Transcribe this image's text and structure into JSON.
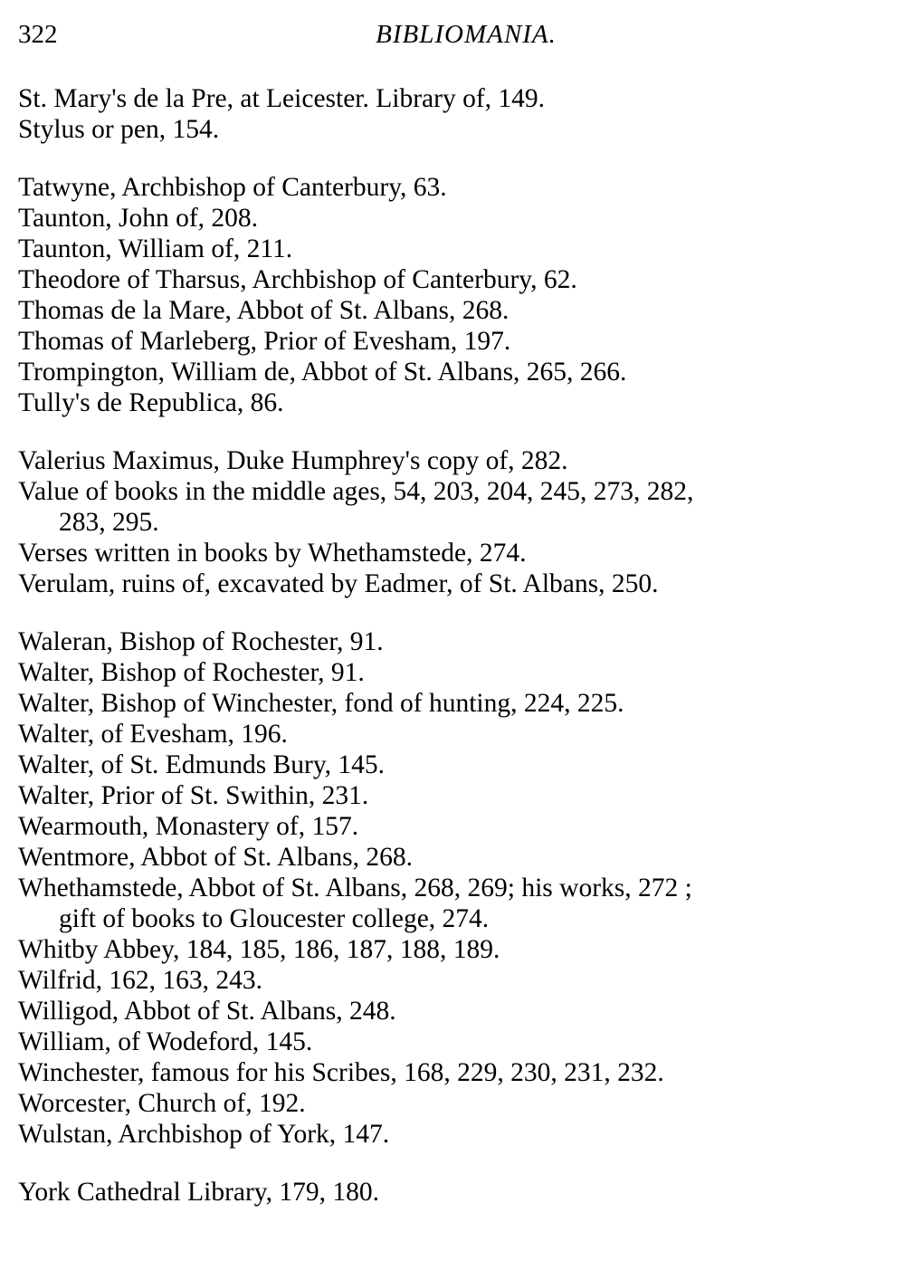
{
  "header": {
    "page_number": "322",
    "title": "BIBLIOMANIA."
  },
  "groups": [
    {
      "entries": [
        {
          "lines": [
            "St. Mary's de la Pre, at Leicester.   Library of, 149."
          ]
        },
        {
          "lines": [
            "Stylus or pen, 154."
          ]
        }
      ]
    },
    {
      "entries": [
        {
          "lines": [
            "Tatwyne, Archbishop of Canterbury, 63."
          ]
        },
        {
          "lines": [
            "Taunton, John of, 208."
          ]
        },
        {
          "lines": [
            "Taunton, William of, 211."
          ]
        },
        {
          "lines": [
            "Theodore of Tharsus, Archbishop of Canterbury, 62."
          ]
        },
        {
          "lines": [
            "Thomas de la Mare, Abbot of St. Albans, 268."
          ]
        },
        {
          "lines": [
            "Thomas of Marleberg, Prior of Evesham, 197."
          ]
        },
        {
          "lines": [
            "Trompington, William de, Abbot of St. Albans, 265, 266."
          ]
        },
        {
          "lines": [
            "Tully's de Republica, 86."
          ]
        }
      ]
    },
    {
      "entries": [
        {
          "lines": [
            "Valerius Maximus, Duke Humphrey's copy of, 282."
          ]
        },
        {
          "lines": [
            "Value of books in the middle ages, 54, 203, 204, 245, 273, 282,",
            "283, 295."
          ]
        },
        {
          "lines": [
            "Verses written in books by Whethamstede, 274."
          ]
        },
        {
          "lines": [
            "Verulam, ruins of, excavated by Eadmer, of St. Albans, 250."
          ]
        }
      ]
    },
    {
      "entries": [
        {
          "lines": [
            "Waleran, Bishop of Rochester, 91."
          ]
        },
        {
          "lines": [
            "Walter, Bishop of Rochester, 91."
          ]
        },
        {
          "lines": [
            "Walter, Bishop of Winchester, fond of hunting, 224, 225."
          ]
        },
        {
          "lines": [
            "Walter, of Evesham, 196."
          ]
        },
        {
          "lines": [
            "Walter, of St. Edmunds Bury, 145."
          ]
        },
        {
          "lines": [
            "Walter, Prior of St. Swithin, 231."
          ]
        },
        {
          "lines": [
            "Wearmouth, Monastery of, 157."
          ]
        },
        {
          "lines": [
            "Wentmore, Abbot of St. Albans, 268."
          ]
        },
        {
          "lines": [
            "Whethamstede, Abbot of St. Albans, 268, 269; his works, 272 ;",
            "gift of books to Gloucester college, 274."
          ]
        },
        {
          "lines": [
            "Whitby Abbey, 184, 185, 186, 187, 188, 189."
          ]
        },
        {
          "lines": [
            "Wilfrid, 162, 163, 243."
          ]
        },
        {
          "lines": [
            "Willigod, Abbot of St. Albans, 248."
          ]
        },
        {
          "lines": [
            "William, of Wodeford, 145."
          ]
        },
        {
          "lines": [
            "Winchester, famous for his Scribes, 168, 229, 230, 231, 232."
          ]
        },
        {
          "lines": [
            "Worcester, Church of, 192."
          ]
        },
        {
          "lines": [
            "Wulstan, Archbishop of York, 147."
          ]
        }
      ]
    },
    {
      "entries": [
        {
          "lines": [
            "York Cathedral Library, 179, 180."
          ]
        }
      ]
    }
  ]
}
